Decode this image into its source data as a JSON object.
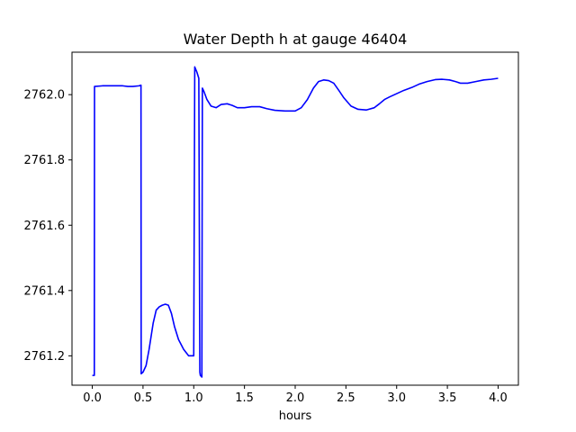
{
  "chart_data": {
    "type": "line",
    "title": "Water Depth h at gauge 46404",
    "xlabel": "hours",
    "ylabel": "",
    "xlim": [
      -0.2,
      4.2
    ],
    "ylim": [
      2761.11,
      2762.13
    ],
    "xticks": [
      0.0,
      0.5,
      1.0,
      1.5,
      2.0,
      2.5,
      3.0,
      3.5,
      4.0
    ],
    "xtick_labels": [
      "0.0",
      "0.5",
      "1.0",
      "1.5",
      "2.0",
      "2.5",
      "3.0",
      "3.5",
      "4.0"
    ],
    "yticks": [
      2761.2,
      2761.4,
      2761.6,
      2761.8,
      2762.0
    ],
    "ytick_labels": [
      "2761.2",
      "2761.4",
      "2761.6",
      "2761.8",
      "2762.0"
    ],
    "grid": false,
    "series": [
      {
        "color": "#0000ff",
        "x": [
          0.0,
          0.02,
          0.022,
          0.1,
          0.2,
          0.3,
          0.35,
          0.4,
          0.46,
          0.48,
          0.482,
          0.5,
          0.53,
          0.56,
          0.6,
          0.63,
          0.66,
          0.69,
          0.72,
          0.75,
          0.78,
          0.81,
          0.85,
          0.9,
          0.95,
          1.0,
          1.01,
          1.012,
          1.03,
          1.05,
          1.06,
          1.065,
          1.08,
          1.085,
          1.1,
          1.13,
          1.17,
          1.22,
          1.27,
          1.33,
          1.38,
          1.43,
          1.5,
          1.57,
          1.65,
          1.72,
          1.8,
          1.9,
          2.0,
          2.06,
          2.12,
          2.18,
          2.23,
          2.28,
          2.33,
          2.38,
          2.43,
          2.48,
          2.55,
          2.62,
          2.7,
          2.78,
          2.83,
          2.88,
          2.93,
          3.0,
          3.07,
          3.15,
          3.22,
          3.3,
          3.38,
          3.45,
          3.52,
          3.58,
          3.63,
          3.7,
          3.78,
          3.86,
          3.93,
          4.0
        ],
        "y": [
          2761.14,
          2761.14,
          2762.025,
          2762.027,
          2762.027,
          2762.027,
          2762.025,
          2762.025,
          2762.027,
          2762.029,
          2761.145,
          2761.15,
          2761.17,
          2761.22,
          2761.3,
          2761.34,
          2761.35,
          2761.355,
          2761.358,
          2761.355,
          2761.33,
          2761.29,
          2761.25,
          2761.22,
          2761.2,
          2761.2,
          2762.085,
          2762.083,
          2762.07,
          2762.05,
          2761.15,
          2761.14,
          2761.135,
          2762.02,
          2762.01,
          2761.985,
          2761.965,
          2761.96,
          2761.97,
          2761.972,
          2761.967,
          2761.96,
          2761.96,
          2761.963,
          2761.963,
          2761.957,
          2761.952,
          2761.95,
          2761.95,
          2761.96,
          2761.985,
          2762.02,
          2762.04,
          2762.045,
          2762.043,
          2762.035,
          2762.013,
          2761.99,
          2761.965,
          2761.955,
          2761.953,
          2761.96,
          2761.972,
          2761.985,
          2761.993,
          2762.003,
          2762.013,
          2762.022,
          2762.032,
          2762.04,
          2762.046,
          2762.047,
          2762.045,
          2762.04,
          2762.035,
          2762.035,
          2762.04,
          2762.045,
          2762.047,
          2762.05
        ]
      }
    ]
  }
}
